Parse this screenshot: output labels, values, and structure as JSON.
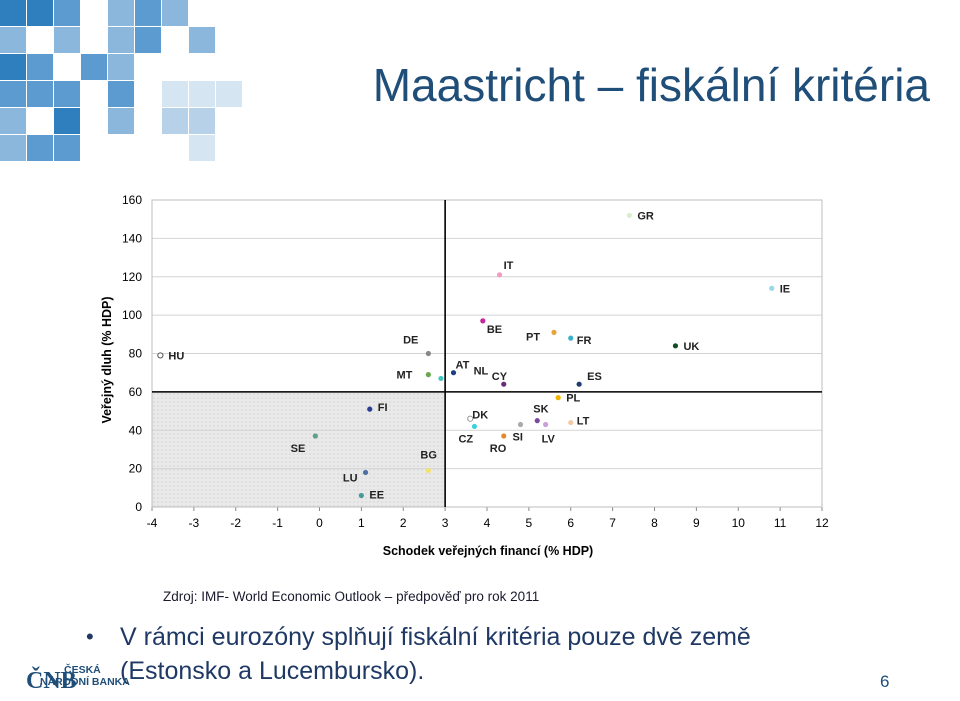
{
  "slide": {
    "title": "Maastricht – fiskální kritéria",
    "source": "Zdroj: IMF- World Economic Outlook – předpověď pro rok 2011",
    "bullet": "V rámci eurozóny splňují fiskální kritéria pouze dvě země (Estonsko a Lucembursko).",
    "page_number": "6",
    "logo": {
      "mark": "ČNB",
      "line1": "ČESKÁ",
      "line2": "NÁRODNÍ BANKA"
    },
    "colors": {
      "title": "#1f4e79",
      "bullet": "#1f3864",
      "mosaic_dark": "#1f6ca8",
      "mosaic_light": "#c9dcec"
    }
  },
  "chart_data": {
    "type": "scatter",
    "xlabel": "Schodek veřejných financí (% HDP)",
    "ylabel": "Veřejný dluh (% HDP)",
    "xlim": [
      -4,
      12
    ],
    "ylim": [
      0,
      160
    ],
    "xticks": [
      "-4",
      "-3",
      "-2",
      "-1",
      "0",
      "1",
      "2",
      "3",
      "4",
      "5",
      "6",
      "7",
      "8",
      "9",
      "10",
      "11",
      "12"
    ],
    "yticks": [
      "0",
      "20",
      "40",
      "60",
      "80",
      "100",
      "120",
      "140",
      "160"
    ],
    "criteria": {
      "deficit": 3,
      "debt": 60
    },
    "grid": true,
    "points": [
      {
        "name": "HU",
        "x": -3.8,
        "y": 79,
        "color": "#ffffff",
        "stroke": "#555555"
      },
      {
        "name": "SE",
        "x": -0.1,
        "y": 37,
        "color": "#5fa08a"
      },
      {
        "name": "LU",
        "x": 1.1,
        "y": 18,
        "color": "#4a6fa5"
      },
      {
        "name": "EE",
        "x": 1.0,
        "y": 6,
        "color": "#4a9a9a"
      },
      {
        "name": "FI",
        "x": 1.2,
        "y": 51,
        "color": "#2a3f8f"
      },
      {
        "name": "DE",
        "x": 2.6,
        "y": 80,
        "color": "#888888"
      },
      {
        "name": "MT",
        "x": 2.6,
        "y": 69,
        "color": "#6aa84f"
      },
      {
        "name": "BG",
        "x": 2.6,
        "y": 19,
        "color": "#f2e36a"
      },
      {
        "name": "AT",
        "x": 3.2,
        "y": 70,
        "color": "#1f3c88"
      },
      {
        "name": "NL",
        "x": 2.9,
        "y": 67,
        "color": "#45c7c0"
      },
      {
        "name": "IT",
        "x": 4.3,
        "y": 121,
        "color": "#f29ac2"
      },
      {
        "name": "BE",
        "x": 3.9,
        "y": 97,
        "color": "#c2299b"
      },
      {
        "name": "CY",
        "x": 4.4,
        "y": 64,
        "color": "#6b2d7a"
      },
      {
        "name": "DK",
        "x": 3.6,
        "y": 46,
        "color": "#ffffff",
        "stroke": "#999999"
      },
      {
        "name": "CZ",
        "x": 3.7,
        "y": 42,
        "color": "#3fd0e0"
      },
      {
        "name": "RO",
        "x": 4.4,
        "y": 37,
        "color": "#e38b2c"
      },
      {
        "name": "SI",
        "x": 4.8,
        "y": 43,
        "color": "#a9a9a9"
      },
      {
        "name": "PT",
        "x": 5.6,
        "y": 91,
        "color": "#e8a33d"
      },
      {
        "name": "FR",
        "x": 6.0,
        "y": 88,
        "color": "#3bb0c9"
      },
      {
        "name": "SK",
        "x": 5.2,
        "y": 45,
        "color": "#7a4aa0"
      },
      {
        "name": "LV",
        "x": 5.4,
        "y": 43,
        "color": "#c9a0dc"
      },
      {
        "name": "PL",
        "x": 5.7,
        "y": 57,
        "color": "#f0b400"
      },
      {
        "name": "ES",
        "x": 6.2,
        "y": 64,
        "color": "#1f3c6e"
      },
      {
        "name": "LT",
        "x": 6.0,
        "y": 44,
        "color": "#f5c9a0"
      },
      {
        "name": "UK",
        "x": 8.5,
        "y": 84,
        "color": "#0d4d1e"
      },
      {
        "name": "GR",
        "x": 7.4,
        "y": 152,
        "color": "#d9f0d0"
      },
      {
        "name": "IE",
        "x": 10.8,
        "y": 114,
        "color": "#9ad8e8"
      }
    ]
  }
}
